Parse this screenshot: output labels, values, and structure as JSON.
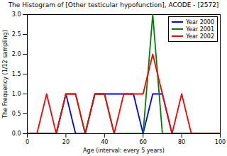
{
  "chart_data": {
    "type": "line",
    "title": "The Histogram of [Other testicular hypofunction], ACODE - [2572]",
    "x_label": "Age (interval: every 5 years)",
    "y_label": "The Frequency (1/12 sampling)",
    "x": [
      0,
      5,
      10,
      15,
      20,
      25,
      30,
      35,
      40,
      45,
      50,
      55,
      60,
      65,
      70,
      75,
      80,
      85,
      90,
      95,
      100
    ],
    "series": [
      {
        "name": "Year 2000",
        "color": "#0000ff",
        "values": [
          0,
          0,
          0,
          0,
          1,
          0,
          0,
          1,
          1,
          1,
          1,
          1,
          0,
          1,
          1,
          0,
          0,
          0,
          0,
          0,
          0
        ]
      },
      {
        "name": "Year 2001",
        "color": "#008000",
        "values": [
          0,
          0,
          0,
          0,
          1,
          1,
          0,
          1,
          1,
          0,
          0,
          0,
          0,
          3,
          0,
          0,
          0,
          0,
          0,
          0,
          0
        ]
      },
      {
        "name": "Year 2002",
        "color": "#ff0000",
        "values": [
          0,
          0,
          1,
          0,
          1,
          1,
          0,
          1,
          1,
          0,
          1,
          1,
          1,
          2,
          1,
          0,
          1,
          0,
          0,
          0,
          0
        ]
      }
    ],
    "xlim": [
      0,
      100
    ],
    "xticks": [
      0,
      20,
      40,
      60,
      80,
      100
    ],
    "ylim": [
      0,
      3
    ],
    "yticks": [
      {
        "value": 0,
        "label": "0.0"
      },
      {
        "value": 0.5,
        "label": "0.5"
      },
      {
        "value": 1,
        "label": "1.0"
      },
      {
        "value": 1.5,
        "label": "1.5"
      },
      {
        "value": 2,
        "label": "2.0"
      },
      {
        "value": 2.5,
        "label": "2.5"
      },
      {
        "value": 3,
        "label": "3.0"
      }
    ],
    "legend": "upper right",
    "grid": false
  }
}
